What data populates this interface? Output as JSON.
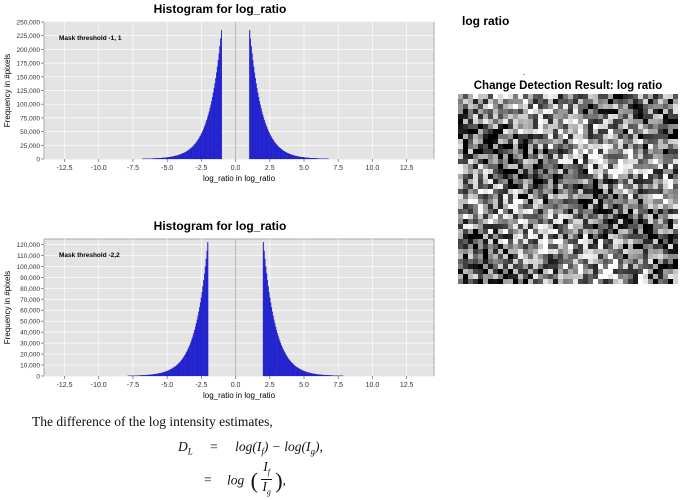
{
  "chart_data": [
    {
      "type": "bar",
      "title": "Histogram for log_ratio",
      "xlabel": "log_ratio in log_ratio",
      "ylabel": "Frequency in #pixels",
      "annotation": "Mask threshold -1, 1",
      "xlim": [
        -14,
        14.5
      ],
      "ylim": [
        0,
        250000
      ],
      "xticks": [
        "-12.5",
        "-10.0",
        "-7.5",
        "-5.0",
        "-2.5",
        "0.0",
        "2.5",
        "5.0",
        "7.5",
        "10.0",
        "12.5"
      ],
      "yticks": [
        "0",
        "25,000",
        "50,000",
        "75,000",
        "100,000",
        "125,000",
        "150,000",
        "175,000",
        "200,000",
        "225,000",
        "250,000"
      ],
      "threshold": [
        -1,
        1
      ],
      "peak": 235000,
      "distribution": "two-sided exponential decay from thresholds, zero between thresholds",
      "decay_scale": 0.9,
      "color": "#2020dd",
      "grid": true
    },
    {
      "type": "bar",
      "title": "Histogram for log_ratio",
      "xlabel": "log_ratio in log_ratio",
      "ylabel": "Frequency in #pixels",
      "annotation": "Mask threshold -2,2",
      "xlim": [
        -14,
        14.5
      ],
      "ylim": [
        0,
        125000
      ],
      "xticks": [
        "-12.5",
        "-10.0",
        "-7.5",
        "-5.0",
        "-2.5",
        "0.0",
        "2.5",
        "5.0",
        "7.5",
        "10.0",
        "12.5"
      ],
      "yticks": [
        "0",
        "10,000",
        "20,000",
        "30,000",
        "40,000",
        "50,000",
        "60,000",
        "70,000",
        "80,000",
        "90,000",
        "100,000",
        "110,000",
        "120,000"
      ],
      "threshold": [
        -2,
        2
      ],
      "peak": 122000,
      "distribution": "two-sided exponential decay from thresholds, zero between thresholds",
      "decay_scale": 0.9,
      "color": "#2020dd",
      "grid": true
    }
  ],
  "right": {
    "title": "log ratio",
    "mark": ".",
    "caption": "Change Detection Result: log ratio",
    "image_alt": "grayscale noisy change detection image"
  },
  "doc": {
    "sentence": "The difference of the log intensity estimates,",
    "eq1_lhs": "D",
    "eq1_sub": "L",
    "eq_sign": "=",
    "eq1_rhs": "log(I",
    "eq1_rhs_sub1": "f",
    "eq1_rhs_mid": ") − log(I",
    "eq1_rhs_sub2": "g",
    "eq1_rhs_end": "),",
    "eq2_log": "log",
    "eq2_num": "I",
    "eq2_num_sub": "f",
    "eq2_den": "I",
    "eq2_den_sub": "g",
    "eq2_end": ","
  }
}
